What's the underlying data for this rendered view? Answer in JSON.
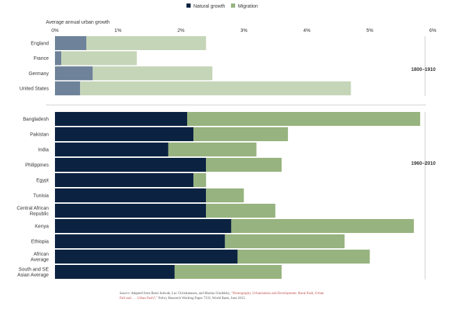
{
  "chart_data": {
    "type": "bar",
    "orientation": "horizontal",
    "stacked": true,
    "xlabel": "Average annual urban growth",
    "xlim": [
      0,
      6
    ],
    "x_ticks": [
      "0%",
      "1%",
      "2%",
      "3%",
      "4%",
      "5%",
      "6%"
    ],
    "legend": {
      "position": "top",
      "items": [
        {
          "label": "Natural growth",
          "color": "#0b2341"
        },
        {
          "label": "Migration",
          "color": "#97b37f"
        }
      ]
    },
    "groups": [
      {
        "label": "1800–1910",
        "colors": {
          "natural": "#6e8299",
          "migration": "#c5d5b8"
        },
        "categories": [
          "England",
          "France",
          "Germany",
          "United States"
        ],
        "series": [
          {
            "name": "Natural growth",
            "values": [
              0.5,
              0.1,
              0.6,
              0.4
            ]
          },
          {
            "name": "Migration",
            "values": [
              1.9,
              1.2,
              1.9,
              4.3
            ]
          }
        ]
      },
      {
        "label": "1960–2010",
        "colors": {
          "natural": "#0b2341",
          "migration": "#97b37f"
        },
        "categories": [
          "Bangladesh",
          "Pakistan",
          "India",
          "Philippines",
          "Egypt",
          "Tunisia",
          "Central African Republic",
          "Kenya",
          "Ethiopia",
          "African Average",
          "South and SE Asian Average"
        ],
        "category_lines": [
          [
            "Bangladesh"
          ],
          [
            "Pakistan"
          ],
          [
            "India"
          ],
          [
            "Philippines"
          ],
          [
            "Egypt"
          ],
          [
            "Tunisia"
          ],
          [
            "Central African",
            "Republic"
          ],
          [
            "Kenya"
          ],
          [
            "Ethiopia"
          ],
          [
            "African",
            "Average"
          ],
          [
            "South and SE",
            "Asian Average"
          ]
        ],
        "series": [
          {
            "name": "Natural growth",
            "values": [
              2.1,
              2.2,
              1.8,
              2.4,
              2.2,
              2.4,
              2.4,
              2.8,
              2.7,
              2.9,
              1.9
            ]
          },
          {
            "name": "Migration",
            "values": [
              3.7,
              1.5,
              1.4,
              1.2,
              0.2,
              0.6,
              1.1,
              2.9,
              1.9,
              2.1,
              1.7
            ]
          }
        ]
      }
    ]
  },
  "source": {
    "label": "Source",
    "text_before": ": Adapted from Remi Jedwab, Luc Christiaensen, and Marina Gindelsky, ",
    "link_text": "“Demography, Urbanization and Development: Rural Push, Urban Pull and . . . Urban Push?,”",
    "text_after": " Policy Research Working Paper 7333, World Bank, June 2015."
  }
}
